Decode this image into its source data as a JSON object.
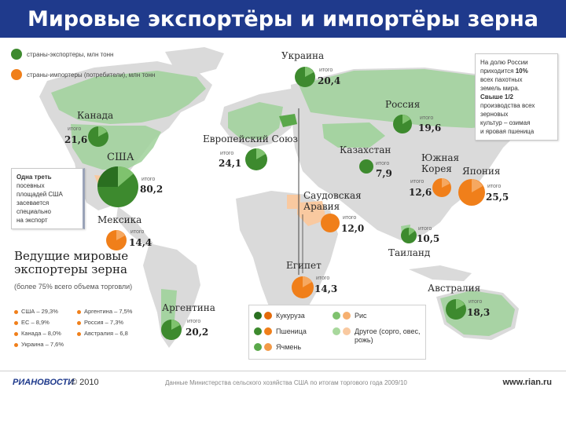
{
  "title": "Мировые экспортёры и импортёры зерна",
  "legend": {
    "exporters": "страны-экспортеры, млн тонн",
    "importers": "страны-импортеры (потребители), млн тонн"
  },
  "itogo_label": "итого",
  "countries": [
    {
      "key": "ukraine",
      "name": "Украина",
      "value": "20,4",
      "role": "exporter"
    },
    {
      "key": "russia",
      "name": "Россия",
      "value": "19,6",
      "role": "exporter"
    },
    {
      "key": "canada",
      "name": "Канада",
      "value": "21,6",
      "role": "exporter"
    },
    {
      "key": "eu",
      "name": "Европейский Союз",
      "value": "24,1",
      "role": "exporter"
    },
    {
      "key": "usa",
      "name": "США",
      "value": "80,2",
      "role": "exporter"
    },
    {
      "key": "kazakhstan",
      "name": "Казахстан",
      "value": "7,9",
      "role": "exporter"
    },
    {
      "key": "korea",
      "name": "Южная Корея",
      "value": "12,6",
      "role": "importer"
    },
    {
      "key": "japan",
      "name": "Япония",
      "value": "25,5",
      "role": "importer"
    },
    {
      "key": "mexico",
      "name": "Мексика",
      "value": "14,4",
      "role": "importer"
    },
    {
      "key": "saudi",
      "name": "Саудовская Аравия",
      "value": "12,0",
      "role": "importer"
    },
    {
      "key": "thailand",
      "name": "Таиланд",
      "value": "10,5",
      "role": "exporter"
    },
    {
      "key": "egypt",
      "name": "Египет",
      "value": "14,3",
      "role": "importer"
    },
    {
      "key": "argentina",
      "name": "Аргентина",
      "value": "20,2",
      "role": "exporter"
    },
    {
      "key": "australia",
      "name": "Австралия",
      "value": "18,3",
      "role": "exporter"
    }
  ],
  "notes": {
    "russia_l1": "На долю России",
    "russia_l2": "приходится",
    "russia_pct": "10%",
    "russia_l3": "всех пахотных",
    "russia_l4": "земель мира.",
    "russia_bold": "Свыше 1/2",
    "russia_l5": "производства всех",
    "russia_l6": "зерновых",
    "russia_l7": "культур – озимая",
    "russia_l8": "и яровая пшеница",
    "usa_bold": "Одна треть",
    "usa_l1": "посевных",
    "usa_l2": "площадей США",
    "usa_l3": "засевается",
    "usa_l4": "специально",
    "usa_l5": "на экспорт"
  },
  "exporters_block": {
    "title": "Ведущие мировые экспортеры зерна",
    "subtitle": "(более 75% всего объема торговли)",
    "col1": [
      "США – 29,3%",
      "ЕС – 8,9%",
      "Канада – 8,0%",
      "Украина – 7,6%"
    ],
    "col2": [
      "Аргентина – 7,5%",
      "Россия – 7,3%",
      "Австралия – 6,8"
    ]
  },
  "crops": {
    "corn": "Кукуруза",
    "rice": "Рис",
    "wheat": "Пшеница",
    "other": "Другое (сорго, овес, рожь)",
    "barley": "Ячмень"
  },
  "footer": {
    "logo": "РИАНОВОСТИ",
    "copyright": "© 2010",
    "source": "Данные Министерства сельского хозяйства США по итогам торгового года 2009/10",
    "url": "www.rian.ru"
  },
  "colors": {
    "title_bg": "#1f3a8c",
    "exporter": "#3d8a2e",
    "importer": "#f07f1a",
    "land": "#dadada",
    "land_highlight": "#9fd19a",
    "import_land": "#f9c9a0"
  }
}
